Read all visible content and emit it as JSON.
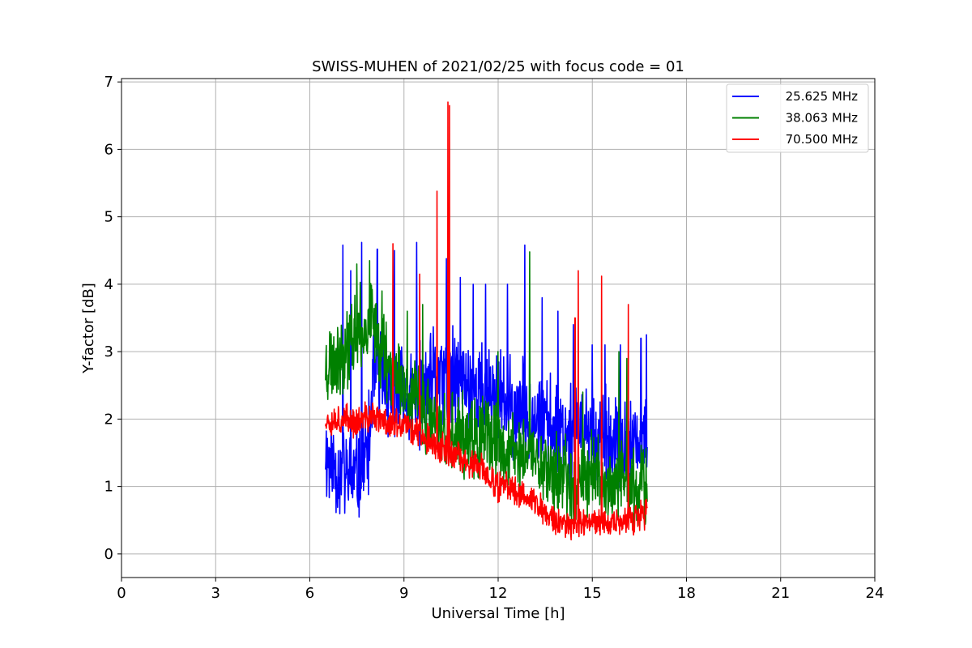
{
  "chart_data": {
    "type": "line",
    "title": "SWISS-MUHEN of 2021/02/25 with focus code = 01",
    "xlabel": "Universal Time [h]",
    "ylabel": "Y-factor [dB]",
    "xlim": [
      0,
      24
    ],
    "ylim": [
      -0.35,
      7.05
    ],
    "xticks": [
      0,
      3,
      6,
      9,
      12,
      15,
      18,
      21,
      24
    ],
    "yticks": [
      0,
      1,
      2,
      3,
      4,
      5,
      6,
      7
    ],
    "grid": true,
    "legend_position": "top-right",
    "series": [
      {
        "name": "25.625 MHz",
        "color": "#0000ff",
        "x_start": 6.5,
        "x_end": 16.75,
        "baseline": [
          [
            6.5,
            1.5
          ],
          [
            6.6,
            1.4
          ],
          [
            6.8,
            1.3
          ],
          [
            7.0,
            1.2
          ],
          [
            7.3,
            1.1
          ],
          [
            7.6,
            1.2
          ],
          [
            7.9,
            1.6
          ],
          [
            8.0,
            2.6
          ],
          [
            8.3,
            2.6
          ],
          [
            8.6,
            2.4
          ],
          [
            9.0,
            2.3
          ],
          [
            9.5,
            2.3
          ],
          [
            10.0,
            2.6
          ],
          [
            10.5,
            2.6
          ],
          [
            11.0,
            2.5
          ],
          [
            11.5,
            2.4
          ],
          [
            12.0,
            2.3
          ],
          [
            12.5,
            2.1
          ],
          [
            13.0,
            2.1
          ],
          [
            13.5,
            1.9
          ],
          [
            14.0,
            1.9
          ],
          [
            14.5,
            1.8
          ],
          [
            15.0,
            1.8
          ],
          [
            15.5,
            1.6
          ],
          [
            16.0,
            1.5
          ],
          [
            16.5,
            1.6
          ],
          [
            16.75,
            1.6
          ]
        ],
        "noise": 0.9,
        "spikes": [
          [
            7.05,
            4.58
          ],
          [
            7.3,
            4.2
          ],
          [
            7.65,
            4.62
          ],
          [
            8.15,
            4.52
          ],
          [
            8.7,
            4.5
          ],
          [
            9.4,
            4.62
          ],
          [
            10.35,
            4.38
          ],
          [
            10.8,
            4.1
          ],
          [
            11.2,
            4.0
          ],
          [
            11.6,
            4.0
          ],
          [
            12.3,
            4.0
          ],
          [
            12.85,
            4.58
          ],
          [
            13.4,
            3.8
          ],
          [
            13.9,
            3.6
          ],
          [
            14.4,
            3.4
          ],
          [
            15.0,
            3.1
          ],
          [
            15.4,
            3.1
          ],
          [
            15.9,
            3.1
          ],
          [
            16.55,
            3.2
          ],
          [
            16.72,
            3.25
          ]
        ],
        "seed": 11
      },
      {
        "name": "38.063 MHz",
        "color": "#008000",
        "x_start": 6.5,
        "x_end": 16.75,
        "baseline": [
          [
            6.5,
            2.8
          ],
          [
            7.0,
            3.0
          ],
          [
            7.5,
            3.3
          ],
          [
            8.0,
            3.4
          ],
          [
            8.5,
            2.9
          ],
          [
            9.0,
            2.5
          ],
          [
            9.5,
            2.2
          ],
          [
            10.0,
            1.9
          ],
          [
            10.5,
            1.8
          ],
          [
            11.0,
            1.7
          ],
          [
            11.5,
            1.7
          ],
          [
            12.0,
            1.6
          ],
          [
            12.5,
            1.5
          ],
          [
            13.0,
            1.5
          ],
          [
            13.5,
            1.3
          ],
          [
            14.0,
            1.1
          ],
          [
            14.5,
            1.1
          ],
          [
            15.0,
            1.2
          ],
          [
            15.5,
            1.0
          ],
          [
            16.0,
            1.0
          ],
          [
            16.5,
            1.0
          ],
          [
            16.75,
            1.0
          ]
        ],
        "noise": 0.75,
        "spikes": [
          [
            7.5,
            4.3
          ],
          [
            7.9,
            4.35
          ],
          [
            8.3,
            3.9
          ],
          [
            9.1,
            3.6
          ],
          [
            9.6,
            3.7
          ],
          [
            12.0,
            3.0
          ],
          [
            13.0,
            4.48
          ],
          [
            14.7,
            2.4
          ],
          [
            15.85,
            3.0
          ],
          [
            16.1,
            2.9
          ]
        ],
        "seed": 23
      },
      {
        "name": "70.500 MHz",
        "color": "#ff0000",
        "x_start": 6.5,
        "x_end": 16.75,
        "baseline": [
          [
            6.5,
            2.0
          ],
          [
            7.0,
            2.0
          ],
          [
            7.5,
            1.95
          ],
          [
            8.0,
            2.05
          ],
          [
            8.5,
            1.95
          ],
          [
            9.0,
            1.9
          ],
          [
            9.5,
            1.8
          ],
          [
            10.0,
            1.6
          ],
          [
            10.5,
            1.5
          ],
          [
            11.0,
            1.35
          ],
          [
            11.5,
            1.25
          ],
          [
            12.0,
            1.0
          ],
          [
            12.5,
            0.95
          ],
          [
            13.0,
            0.85
          ],
          [
            13.5,
            0.6
          ],
          [
            14.0,
            0.45
          ],
          [
            14.5,
            0.45
          ],
          [
            15.0,
            0.5
          ],
          [
            15.5,
            0.45
          ],
          [
            16.0,
            0.45
          ],
          [
            16.5,
            0.55
          ],
          [
            16.75,
            0.6
          ]
        ],
        "noise": 0.28,
        "spikes": [
          [
            8.65,
            4.6
          ],
          [
            9.5,
            4.15
          ],
          [
            10.05,
            5.38
          ],
          [
            10.4,
            6.7
          ],
          [
            10.45,
            6.65
          ],
          [
            14.45,
            3.5
          ],
          [
            14.55,
            4.2
          ],
          [
            15.3,
            4.12
          ],
          [
            16.15,
            3.7
          ]
        ],
        "seed": 37
      }
    ]
  }
}
